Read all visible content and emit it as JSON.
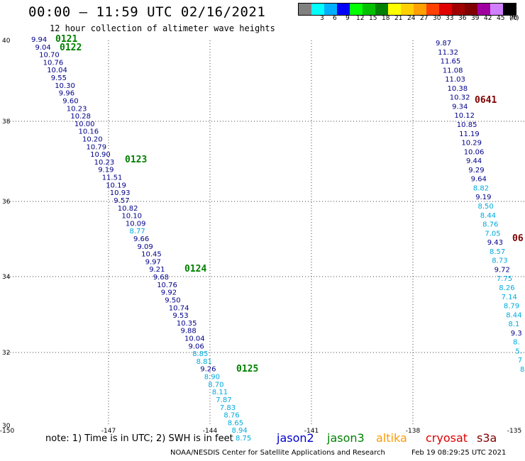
{
  "header": {
    "title": "00:00 – 11:59 UTC 02/16/2021",
    "subtitle": "12 hour collection of altimeter wave heights"
  },
  "legend": {
    "unit": "(ft)",
    "bins": [
      {
        "label": "",
        "color": "#808080"
      },
      {
        "label": "3",
        "color": "#00ffff"
      },
      {
        "label": "6",
        "color": "#00b0ff"
      },
      {
        "label": "9",
        "color": "#0000ff"
      },
      {
        "label": "12",
        "color": "#00ff00"
      },
      {
        "label": "15",
        "color": "#00c000"
      },
      {
        "label": "18",
        "color": "#008000"
      },
      {
        "label": "21",
        "color": "#ffff00"
      },
      {
        "label": "24",
        "color": "#ffd000"
      },
      {
        "label": "27",
        "color": "#ffa000"
      },
      {
        "label": "30",
        "color": "#ff4000"
      },
      {
        "label": "33",
        "color": "#e00000"
      },
      {
        "label": "36",
        "color": "#a00000"
      },
      {
        "label": "39",
        "color": "#800000"
      },
      {
        "label": "42",
        "color": "#a000a0"
      },
      {
        "label": "45",
        "color": "#d080ff"
      },
      {
        "label": "70",
        "color": "#000000"
      }
    ]
  },
  "axes": {
    "lat_labels": [
      "40",
      "38",
      "36",
      "34",
      "32",
      "30"
    ],
    "lon_labels": [
      "-150",
      "-147",
      "-144",
      "-141",
      "-138",
      "-135"
    ]
  },
  "colors": {
    "dark_blue": "#00008b",
    "light_blue": "#00aadd",
    "pass_green": "#008000",
    "pass_dark_red": "#800000"
  },
  "track_left": [
    {
      "v": "9.94",
      "c": "dark_blue"
    },
    {
      "v": "9.04",
      "c": "dark_blue"
    },
    {
      "v": "10.70",
      "c": "dark_blue"
    },
    {
      "v": "10.76",
      "c": "dark_blue"
    },
    {
      "v": "10.04",
      "c": "dark_blue"
    },
    {
      "v": "9.55",
      "c": "dark_blue"
    },
    {
      "v": "10.30",
      "c": "dark_blue"
    },
    {
      "v": "9.96",
      "c": "dark_blue"
    },
    {
      "v": "9.60",
      "c": "dark_blue"
    },
    {
      "v": "10.23",
      "c": "dark_blue"
    },
    {
      "v": "10.28",
      "c": "dark_blue"
    },
    {
      "v": "10.00",
      "c": "dark_blue"
    },
    {
      "v": "10.16",
      "c": "dark_blue"
    },
    {
      "v": "10.20",
      "c": "dark_blue"
    },
    {
      "v": "10.79",
      "c": "dark_blue"
    },
    {
      "v": "10.90",
      "c": "dark_blue"
    },
    {
      "v": "10.23",
      "c": "dark_blue"
    },
    {
      "v": "9.19",
      "c": "dark_blue"
    },
    {
      "v": "11.51",
      "c": "dark_blue"
    },
    {
      "v": "10.19",
      "c": "dark_blue"
    },
    {
      "v": "10.93",
      "c": "dark_blue"
    },
    {
      "v": "9.57",
      "c": "dark_blue"
    },
    {
      "v": "10.82",
      "c": "dark_blue"
    },
    {
      "v": "10.10",
      "c": "dark_blue"
    },
    {
      "v": "10.09",
      "c": "dark_blue"
    },
    {
      "v": "8.77",
      "c": "light_blue"
    },
    {
      "v": "9.66",
      "c": "dark_blue"
    },
    {
      "v": "9.09",
      "c": "dark_blue"
    },
    {
      "v": "10.45",
      "c": "dark_blue"
    },
    {
      "v": "9.97",
      "c": "dark_blue"
    },
    {
      "v": "9.21",
      "c": "dark_blue"
    },
    {
      "v": "9.68",
      "c": "dark_blue"
    },
    {
      "v": "10.76",
      "c": "dark_blue"
    },
    {
      "v": "9.92",
      "c": "dark_blue"
    },
    {
      "v": "9.50",
      "c": "dark_blue"
    },
    {
      "v": "10.74",
      "c": "dark_blue"
    },
    {
      "v": "9.53",
      "c": "dark_blue"
    },
    {
      "v": "10.35",
      "c": "dark_blue"
    },
    {
      "v": "9.88",
      "c": "dark_blue"
    },
    {
      "v": "10.04",
      "c": "dark_blue"
    },
    {
      "v": "9.06",
      "c": "dark_blue"
    },
    {
      "v": "8.85",
      "c": "light_blue"
    },
    {
      "v": "8.81",
      "c": "light_blue"
    },
    {
      "v": "9.26",
      "c": "dark_blue"
    },
    {
      "v": "8.90",
      "c": "light_blue"
    },
    {
      "v": "8.70",
      "c": "light_blue"
    },
    {
      "v": "8.11",
      "c": "light_blue"
    },
    {
      "v": "7.87",
      "c": "light_blue"
    },
    {
      "v": "7.83",
      "c": "light_blue"
    },
    {
      "v": "8.76",
      "c": "light_blue"
    },
    {
      "v": "8.65",
      "c": "light_blue"
    },
    {
      "v": "8.94",
      "c": "light_blue"
    },
    {
      "v": "8.75",
      "c": "light_blue"
    }
  ],
  "track_right": [
    {
      "v": "9.87",
      "c": "dark_blue"
    },
    {
      "v": "11.32",
      "c": "dark_blue"
    },
    {
      "v": "11.65",
      "c": "dark_blue"
    },
    {
      "v": "11.08",
      "c": "dark_blue"
    },
    {
      "v": "11.03",
      "c": "dark_blue"
    },
    {
      "v": "10.38",
      "c": "dark_blue"
    },
    {
      "v": "10.32",
      "c": "dark_blue"
    },
    {
      "v": "9.34",
      "c": "dark_blue"
    },
    {
      "v": "10.12",
      "c": "dark_blue"
    },
    {
      "v": "10.85",
      "c": "dark_blue"
    },
    {
      "v": "11.19",
      "c": "dark_blue"
    },
    {
      "v": "10.29",
      "c": "dark_blue"
    },
    {
      "v": "10.06",
      "c": "dark_blue"
    },
    {
      "v": "9.44",
      "c": "dark_blue"
    },
    {
      "v": "9.29",
      "c": "dark_blue"
    },
    {
      "v": "9.64",
      "c": "dark_blue"
    },
    {
      "v": "8.82",
      "c": "light_blue"
    },
    {
      "v": "9.19",
      "c": "dark_blue"
    },
    {
      "v": "8.50",
      "c": "light_blue"
    },
    {
      "v": "8.44",
      "c": "light_blue"
    },
    {
      "v": "8.76",
      "c": "light_blue"
    },
    {
      "v": "7.05",
      "c": "light_blue"
    },
    {
      "v": "9.43",
      "c": "dark_blue"
    },
    {
      "v": "8.57",
      "c": "light_blue"
    },
    {
      "v": "8.73",
      "c": "light_blue"
    },
    {
      "v": "9.72",
      "c": "dark_blue"
    },
    {
      "v": "7.75",
      "c": "light_blue"
    },
    {
      "v": "8.26",
      "c": "light_blue"
    },
    {
      "v": "7.14",
      "c": "light_blue"
    },
    {
      "v": "8.79",
      "c": "light_blue"
    },
    {
      "v": "8.44",
      "c": "light_blue"
    },
    {
      "v": "8.1",
      "c": "light_blue"
    },
    {
      "v": "9.3",
      "c": "dark_blue"
    },
    {
      "v": "8.",
      "c": "light_blue"
    },
    {
      "v": "5.",
      "c": "light_blue"
    },
    {
      "v": "7",
      "c": "light_blue"
    },
    {
      "v": "8",
      "c": "light_blue"
    }
  ],
  "pass_labels": [
    {
      "text": "0121",
      "c": "pass_green"
    },
    {
      "text": "0122",
      "c": "pass_green"
    },
    {
      "text": "0123",
      "c": "pass_green"
    },
    {
      "text": "0124",
      "c": "pass_green"
    },
    {
      "text": "0125",
      "c": "pass_green"
    },
    {
      "text": "0641",
      "c": "pass_dark_red"
    },
    {
      "text": "06",
      "c": "pass_dark_red"
    }
  ],
  "note": "note: 1) Time is in UTC; 2) SWH is in feet",
  "satellites": [
    {
      "name": "jason2",
      "color": "#0000cc"
    },
    {
      "name": "jason3",
      "color": "#008000"
    },
    {
      "name": "altika",
      "color": "#ff9900"
    },
    {
      "name": "cryosat",
      "color": "#dd0000"
    },
    {
      "name": "s3a",
      "color": "#800000"
    }
  ],
  "footer": {
    "credit": "NOAA/NESDIS Center for Satellite Applications and Research",
    "timestamp": "Feb 19 08:29:25 UTC 2021"
  }
}
